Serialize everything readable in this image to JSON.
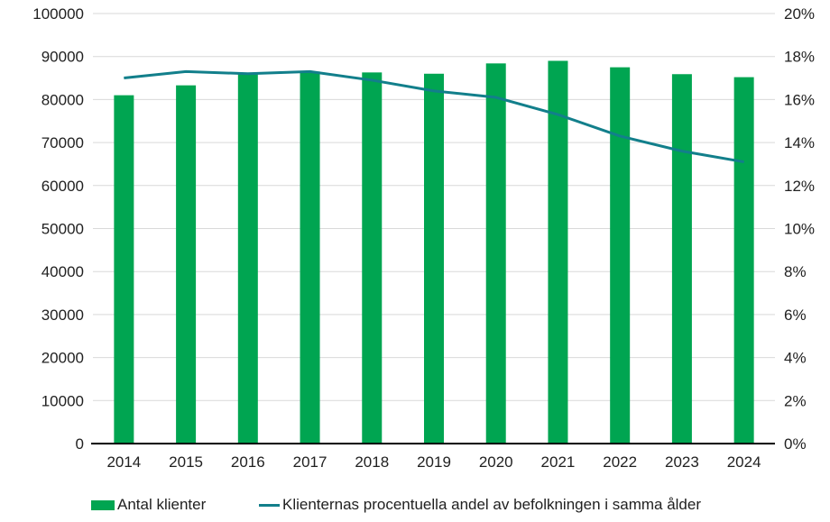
{
  "chart_data": {
    "type": "combo",
    "categories": [
      "2014",
      "2015",
      "2016",
      "2017",
      "2018",
      "2019",
      "2020",
      "2021",
      "2022",
      "2023",
      "2024"
    ],
    "series": [
      {
        "name": "Antal klienter",
        "type": "bar",
        "axis": "left",
        "color": "#00a551",
        "values": [
          81000,
          83300,
          86000,
          86500,
          86300,
          86000,
          88400,
          89000,
          87500,
          85900,
          85200
        ]
      },
      {
        "name": "Klienternas procentuella andel av befolkningen i samma ålder",
        "type": "line",
        "axis": "right",
        "color": "#127f8b",
        "values": [
          17.0,
          17.3,
          17.2,
          17.3,
          16.9,
          16.4,
          16.1,
          15.3,
          14.3,
          13.6,
          13.1
        ]
      }
    ],
    "left_axis": {
      "min": 0,
      "max": 100000,
      "step": 10000,
      "tick_labels": [
        "0",
        "10000",
        "20000",
        "30000",
        "40000",
        "50000",
        "60000",
        "70000",
        "80000",
        "90000",
        "100000"
      ]
    },
    "right_axis": {
      "min": 0,
      "max": 20,
      "step": 2,
      "tick_labels": [
        "0%",
        "2%",
        "4%",
        "6%",
        "8%",
        "10%",
        "12%",
        "14%",
        "16%",
        "18%",
        "20%"
      ]
    },
    "grid": true,
    "legend_position": "bottom",
    "background": "#ffffff",
    "grid_color": "#d9d9d9",
    "axis_line_color": "#000000",
    "text_color": "#212121"
  },
  "legend": {
    "items": [
      {
        "label": "Antal klienter",
        "swatch": "bar-swatch",
        "color": "#00a551"
      },
      {
        "label": "Klienternas procentuella andel av befolkningen i samma ålder",
        "swatch": "line-swatch",
        "color": "#127f8b"
      }
    ]
  }
}
